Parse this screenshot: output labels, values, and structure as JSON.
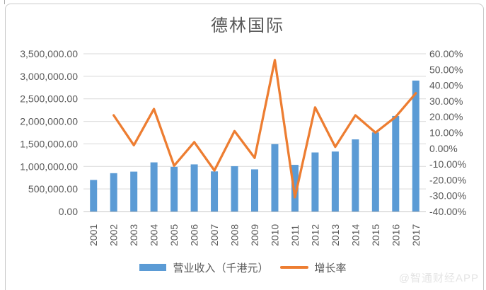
{
  "title": "德林国际",
  "watermark": "@智通财经APP",
  "colors": {
    "bar": "#5B9BD5",
    "line": "#ED7D31",
    "grid": "#D9D9D9",
    "axis_line": "#C6C6C6",
    "axis_text": "#595959",
    "frame": "#C9C9C9",
    "title_text": "#595959",
    "watermark_text": "#E4E4E4"
  },
  "chart_data": {
    "type": "bar",
    "combo": "bar+line",
    "title": "德林国际",
    "categories": [
      "2001",
      "2002",
      "2003",
      "2004",
      "2005",
      "2006",
      "2007",
      "2008",
      "2009",
      "2010",
      "2011",
      "2012",
      "2013",
      "2014",
      "2015",
      "2016",
      "2017"
    ],
    "series": [
      {
        "name": "营业收入（千港元）",
        "type": "bar",
        "axis": "left",
        "color": "#5B9BD5",
        "values": [
          700000,
          850000,
          885000,
          1090000,
          990000,
          1045000,
          890000,
          1005000,
          935000,
          1495000,
          1035000,
          1310000,
          1330000,
          1600000,
          1755000,
          2120000,
          2905000
        ]
      },
      {
        "name": "增长率",
        "type": "line",
        "axis": "right",
        "color": "#ED7D31",
        "values": [
          null,
          21,
          2,
          25,
          -11,
          4,
          -14,
          11,
          -6,
          56,
          -31,
          26,
          1,
          21,
          10,
          20,
          35
        ]
      }
    ],
    "left_axis": {
      "min": 0,
      "max": 3500000,
      "step": 500000,
      "labels": [
        "0.00",
        "500,000.00",
        "1,000,000.00",
        "1,500,000.00",
        "2,000,000.00",
        "2,500,000.00",
        "3,000,000.00",
        "3,500,000.00"
      ]
    },
    "right_axis": {
      "min": -40,
      "max": 60,
      "step": 10,
      "labels": [
        "60.00%",
        "50.00%",
        "40.00%",
        "30.00%",
        "20.00%",
        "10.00%",
        "0.00%",
        "-10.00%",
        "-20.00%",
        "-30.00%",
        "-40.00%"
      ]
    },
    "legend_position": "bottom",
    "grid": true
  }
}
